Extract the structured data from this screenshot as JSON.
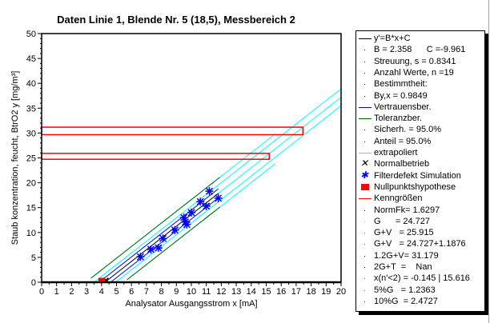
{
  "chart_data": {
    "type": "scatter",
    "title": "Daten Linie 1, Blende Nr. 5 (18,5), Messbereich 2",
    "xlabel": "Analysator Ausgangsstrom x [mA]",
    "ylabel": "Staub konzentration, feucht, BtrO2 y [mg/m³]",
    "xlim": [
      0,
      20
    ],
    "ylim": [
      0,
      50
    ],
    "xticks": [
      0,
      1,
      2,
      3,
      4,
      5,
      6,
      7,
      8,
      9,
      10,
      11,
      12,
      13,
      14,
      15,
      16,
      17,
      18,
      19,
      20
    ],
    "yticks": [
      0,
      5,
      10,
      15,
      20,
      25,
      30,
      35,
      40,
      45,
      50
    ],
    "regression": {
      "B": 2.358,
      "C": -9.961,
      "xrange": [
        4.2,
        11.8
      ]
    },
    "confidence_offset": 0.9,
    "tolerance_offset": 3.0,
    "extrapolated_offset": 1.7,
    "series": [
      {
        "name": "Filterdefekt Simulation",
        "color": "#0000ff",
        "points": [
          [
            11.2,
            18.3
          ],
          [
            11.8,
            16.9
          ],
          [
            10.6,
            16.2
          ],
          [
            11.0,
            15.3
          ],
          [
            10.0,
            14.0
          ],
          [
            9.5,
            13.0
          ],
          [
            9.6,
            12.1
          ],
          [
            9.7,
            11.6
          ],
          [
            8.9,
            10.5
          ],
          [
            8.1,
            8.8
          ],
          [
            7.3,
            6.6
          ],
          [
            7.8,
            6.9
          ],
          [
            6.6,
            5.1
          ]
        ]
      },
      {
        "name": "Normalbetrieb",
        "color": "#000000",
        "points": [
          [
            4.3,
            0.4
          ]
        ]
      },
      {
        "name": "Nullpunktshypothese",
        "color": "#ff0000",
        "points": [
          [
            4.0,
            0.4
          ]
        ]
      }
    ],
    "kenngroessen_rects": [
      {
        "y0": 24.727,
        "y1": 25.915,
        "x1": 15.2
      },
      {
        "y0": 29.67,
        "y1": 31.179,
        "x1": 17.45
      }
    ]
  },
  "legend": [
    {
      "sym": "line",
      "color": "#000000",
      "text": "y'=B*x+C"
    },
    {
      "sym": "dot",
      "color": "#000000",
      "text": "B = 2.358      C =-9.961"
    },
    {
      "sym": "dot",
      "color": "#000000",
      "text": "Streuung, s = 0.8341"
    },
    {
      "sym": "dot",
      "color": "#000000",
      "text": "Anzahl Werte, n =19"
    },
    {
      "sym": "dot",
      "color": "#000000",
      "text": "Bestimmtheit:"
    },
    {
      "sym": "dot",
      "color": "#000000",
      "text": "By,x = 0.9849"
    },
    {
      "sym": "line",
      "color": "#0000ff",
      "text": "Vertrauensber."
    },
    {
      "sym": "line",
      "color": "#006400",
      "text": "Toleranzber."
    },
    {
      "sym": "dot",
      "color": "#000000",
      "text": "Sicherh. = 95.0%"
    },
    {
      "sym": "dot",
      "color": "#000000",
      "text": "Anteil = 95.0%"
    },
    {
      "sym": "line",
      "color": "#00ffff",
      "text": "extrapoliert"
    },
    {
      "sym": "x",
      "color": "#000000",
      "text": "Normalbetrieb"
    },
    {
      "sym": "star",
      "color": "#0000ff",
      "text": "Filterdefekt Simulation"
    },
    {
      "sym": "square",
      "color": "#ff0000",
      "text": "Nullpunktshypothese"
    },
    {
      "sym": "line",
      "color": "#ff0000",
      "text": "Kenngrößen"
    },
    {
      "sym": "dot",
      "color": "#000080",
      "text": "NormFk= 1.6297"
    },
    {
      "sym": "dot",
      "color": "#cccc00",
      "text": "G      = 24.727"
    },
    {
      "sym": "dot",
      "color": "#808000",
      "text": "G+V   = 25.915"
    },
    {
      "sym": "dot",
      "color": "#008080",
      "text": "G+V   = 24.727+1.1876"
    },
    {
      "sym": "dot",
      "color": "#000080",
      "text": "1.2G+V= 31.179"
    },
    {
      "sym": "dot",
      "color": "#800000",
      "text": "2G+T  =    Nan"
    },
    {
      "sym": "dot",
      "color": "#00cc00",
      "text": "x(n'<2) = -0.145 | 15.616"
    },
    {
      "sym": "dot",
      "color": "#808000",
      "text": "5%G   = 1.2363"
    },
    {
      "sym": "dot",
      "color": "#800080",
      "text": "10%G  = 2.4727"
    }
  ]
}
